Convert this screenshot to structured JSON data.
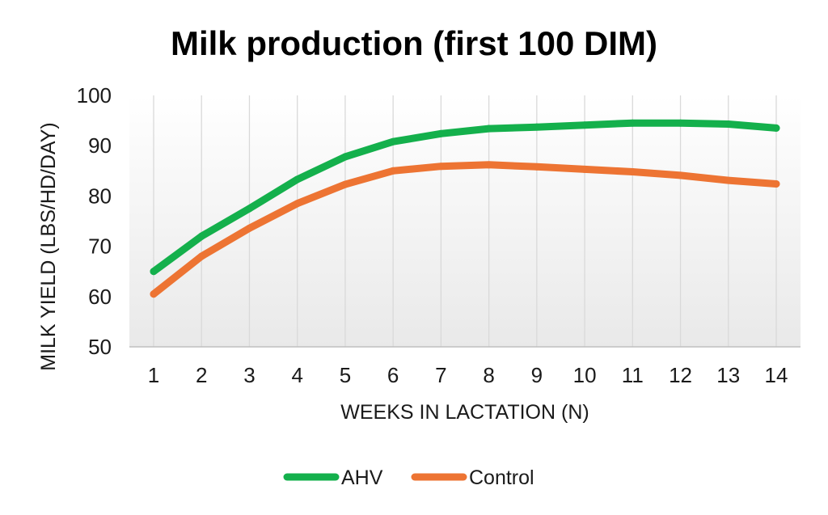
{
  "chart_data": {
    "type": "line",
    "title": "Milk production (first 100 DIM)",
    "xlabel": "WEEKS IN LACTATION (N)",
    "ylabel": "MILK YIELD (LBS/HD/DAY)",
    "categories": [
      "1",
      "2",
      "3",
      "4",
      "5",
      "6",
      "7",
      "8",
      "9",
      "10",
      "11",
      "12",
      "13",
      "14"
    ],
    "ylim": [
      50,
      100
    ],
    "yticks": [
      "50",
      "60",
      "70",
      "80",
      "90",
      "100"
    ],
    "grid": "vertical",
    "legend_position": "bottom",
    "series": [
      {
        "name": "AHV",
        "color": "#14b04c",
        "values": [
          65,
          72,
          77.5,
          83.3,
          87.8,
          90.8,
          92.4,
          93.4,
          93.7,
          94.1,
          94.5,
          94.5,
          94.3,
          93.5
        ]
      },
      {
        "name": "Control",
        "color": "#ed7433",
        "values": [
          60.5,
          68,
          73.6,
          78.5,
          82.3,
          85,
          85.9,
          86.2,
          85.8,
          85.3,
          84.8,
          84.1,
          83.1,
          82.4
        ]
      }
    ]
  }
}
